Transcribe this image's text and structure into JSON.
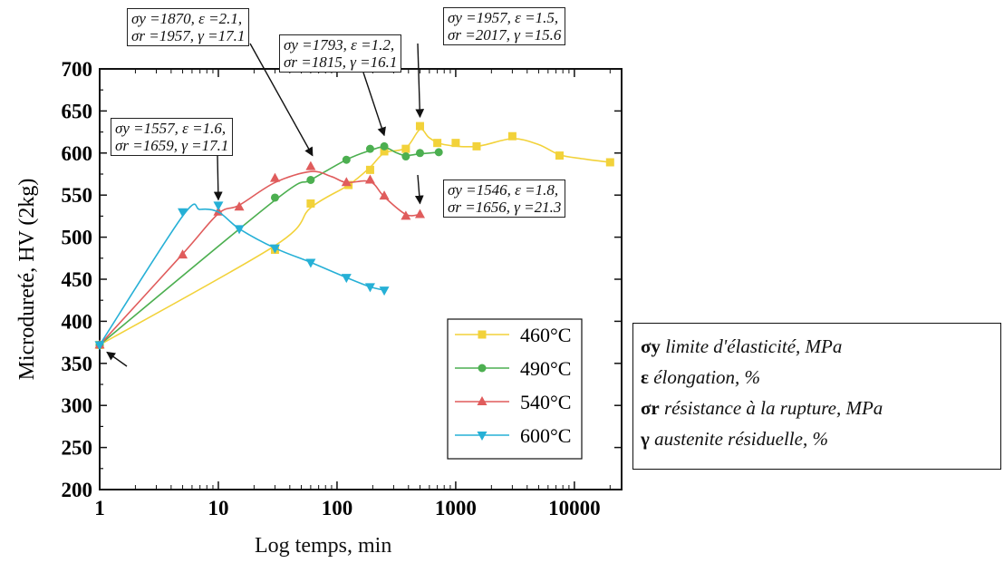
{
  "chart_data": {
    "type": "line",
    "xscale": "log",
    "xlabel": "Log temps, min",
    "ylabel": "Microdureté, HV (2kg)",
    "xlim": [
      1,
      25000
    ],
    "ylim": [
      200,
      700
    ],
    "xticks": [
      1,
      10,
      100,
      1000,
      10000
    ],
    "xtick_labels": [
      "1",
      "10",
      "100",
      "1000",
      "10000"
    ],
    "yticks": [
      200,
      250,
      300,
      350,
      400,
      450,
      500,
      550,
      600,
      650,
      700
    ],
    "legend_position": "lower-right inside plot",
    "grid": false,
    "series": [
      {
        "name": "460°C",
        "color": "#f2d23a",
        "marker": "square",
        "points": [
          [
            1,
            372
          ],
          [
            30,
            485
          ],
          [
            60,
            540
          ],
          [
            125,
            562
          ],
          [
            190,
            580
          ],
          [
            250,
            602
          ],
          [
            380,
            605
          ],
          [
            500,
            632
          ],
          [
            700,
            612
          ],
          [
            1000,
            612
          ],
          [
            1500,
            608
          ],
          [
            3000,
            620
          ],
          [
            7500,
            597
          ],
          [
            20000,
            589
          ]
        ],
        "curve": [
          [
            1,
            372
          ],
          [
            30,
            490
          ],
          [
            60,
            535
          ],
          [
            125,
            562
          ],
          [
            190,
            583
          ],
          [
            250,
            600
          ],
          [
            380,
            606
          ],
          [
            500,
            628
          ],
          [
            600,
            618
          ],
          [
            800,
            610
          ],
          [
            1500,
            608
          ],
          [
            3000,
            617
          ],
          [
            5000,
            610
          ],
          [
            7500,
            598
          ],
          [
            12000,
            593
          ],
          [
            20000,
            589
          ]
        ]
      },
      {
        "name": "490°C",
        "color": "#4caf50",
        "marker": "circle",
        "points": [
          [
            1,
            372
          ],
          [
            30,
            547
          ],
          [
            60,
            568
          ],
          [
            120,
            592
          ],
          [
            190,
            605
          ],
          [
            250,
            608
          ],
          [
            380,
            596
          ],
          [
            500,
            600
          ],
          [
            720,
            601
          ]
        ],
        "curve": [
          [
            1,
            372
          ],
          [
            30,
            544
          ],
          [
            60,
            568
          ],
          [
            120,
            592
          ],
          [
            190,
            603
          ],
          [
            250,
            607
          ],
          [
            320,
            600
          ],
          [
            380,
            597
          ],
          [
            500,
            599
          ],
          [
            720,
            601
          ]
        ]
      },
      {
        "name": "540°C",
        "color": "#e05c5c",
        "marker": "triangle-up",
        "points": [
          [
            1,
            372
          ],
          [
            5,
            479
          ],
          [
            10,
            530
          ],
          [
            15,
            536
          ],
          [
            30,
            570
          ],
          [
            60,
            584
          ],
          [
            120,
            565
          ],
          [
            190,
            568
          ],
          [
            250,
            549
          ],
          [
            380,
            525
          ],
          [
            500,
            527
          ]
        ],
        "curve": [
          [
            1,
            372
          ],
          [
            5,
            480
          ],
          [
            10,
            528
          ],
          [
            15,
            538
          ],
          [
            30,
            565
          ],
          [
            60,
            578
          ],
          [
            90,
            572
          ],
          [
            120,
            565
          ],
          [
            190,
            566
          ],
          [
            250,
            548
          ],
          [
            380,
            527
          ],
          [
            500,
            527
          ]
        ]
      },
      {
        "name": "600°C",
        "color": "#26b0d6",
        "marker": "triangle-down",
        "points": [
          [
            1,
            372
          ],
          [
            5,
            530
          ],
          [
            10,
            538
          ],
          [
            15,
            510
          ],
          [
            30,
            487
          ],
          [
            60,
            470
          ],
          [
            120,
            452
          ],
          [
            190,
            441
          ],
          [
            250,
            437
          ]
        ],
        "curve": [
          [
            1,
            372
          ],
          [
            5,
            525
          ],
          [
            7,
            533
          ],
          [
            10,
            530
          ],
          [
            15,
            510
          ],
          [
            30,
            487
          ],
          [
            60,
            470
          ],
          [
            120,
            452
          ],
          [
            190,
            441
          ],
          [
            250,
            437
          ]
        ]
      }
    ],
    "annotations": [
      {
        "line1": "σy =1870,  ε =2.1,",
        "line2": "σr =1957,  γ =17.1"
      },
      {
        "line1": "σy =1793,   ε =1.2,",
        "line2": "σr =1815,  γ =16.1"
      },
      {
        "line1": "σy =1957,  ε =1.5,",
        "line2": "σr =2017,  γ =15.6"
      },
      {
        "line1": "σy =1557,   ε =1.6,",
        "line2": "σr =1659,  γ =17.1"
      },
      {
        "line1": "σy =1546,   ε =1.8,",
        "line2": "σr =1656,  γ =21.3"
      }
    ],
    "notes": [
      {
        "symbol": "σy",
        "text": "limite d'élasticité, MPa"
      },
      {
        "symbol": "ε",
        "text": "élongation, %"
      },
      {
        "symbol": "σr",
        "text": "résistance à la rupture, MPa"
      },
      {
        "symbol": "γ",
        "text": "austenite résiduelle, %"
      }
    ]
  }
}
